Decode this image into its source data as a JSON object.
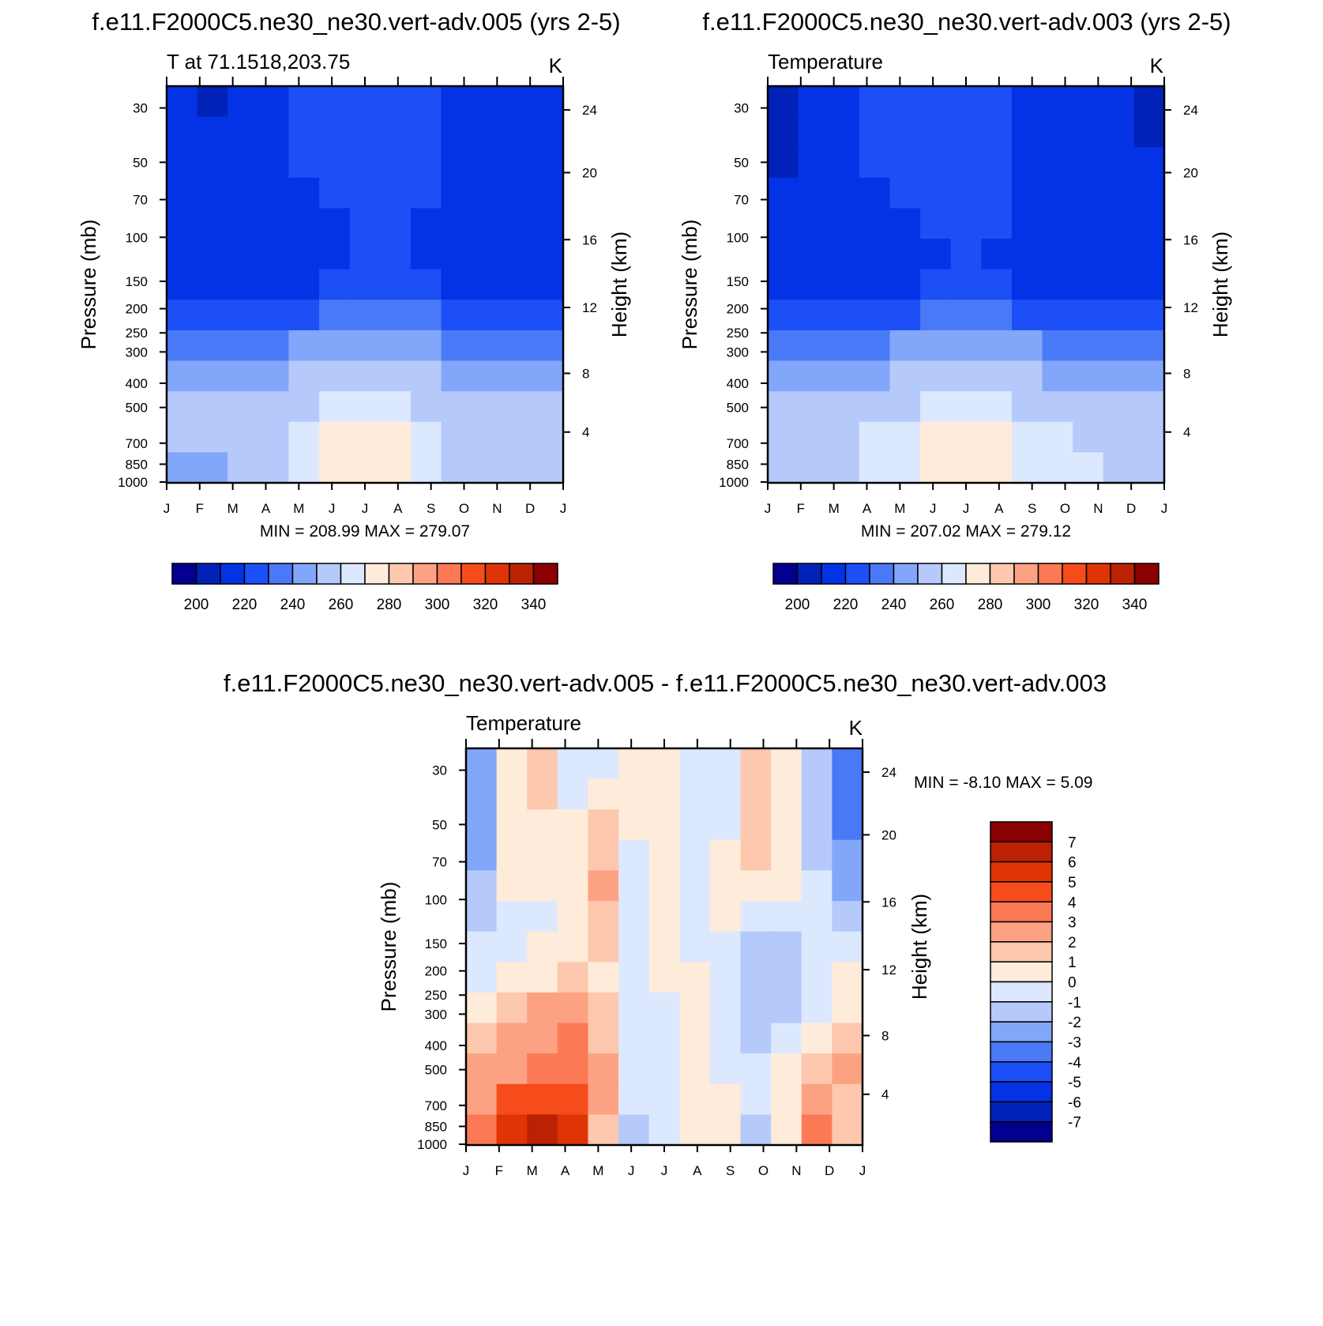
{
  "chart_data": [
    {
      "type": "heatmap",
      "title": "f.e11.F2000C5.ne30_ne30.vert-adv.005 (yrs 2-5)",
      "left_label": "T at 71.1518,203.75",
      "units": "K",
      "ylabel": "Pressure (mb)",
      "ylabel_right": "Height (km)",
      "pressure_ticks": [
        "30",
        "50",
        "70",
        "100",
        "150",
        "200",
        "250",
        "300",
        "400",
        "500",
        "700",
        "850",
        "1000"
      ],
      "height_ticks": [
        "24",
        "20",
        "16",
        "12",
        "8",
        "4"
      ],
      "months": [
        "J",
        "F",
        "M",
        "A",
        "M",
        "J",
        "J",
        "A",
        "S",
        "O",
        "N",
        "D",
        "J"
      ],
      "min_max": "MIN = 208.99 MAX = 279.07",
      "colorbar_labels": [
        "200",
        "220",
        "240",
        "260",
        "280",
        "300",
        "320",
        "340"
      ],
      "colorbar_colors": [
        "#04008f",
        "#0022b8",
        "#0433e6",
        "#1c4ff5",
        "#4a79f7",
        "#82a6f9",
        "#b5cafb",
        "#dce8fd",
        "#feebd9",
        "#fdc8ad",
        "#fca282",
        "#fb7955",
        "#f64c1c",
        "#e03406",
        "#bb2103",
        "#8b0000"
      ],
      "field_levels": [
        [
          2,
          1,
          2,
          2,
          3,
          3,
          3,
          3,
          3,
          2,
          2,
          2,
          2
        ],
        [
          2,
          2,
          2,
          2,
          3,
          3,
          3,
          3,
          3,
          2,
          2,
          2,
          2
        ],
        [
          2,
          2,
          2,
          2,
          3,
          3,
          3,
          3,
          3,
          2,
          2,
          2,
          2
        ],
        [
          2,
          2,
          2,
          2,
          2,
          3,
          3,
          3,
          3,
          2,
          2,
          2,
          2
        ],
        [
          2,
          2,
          2,
          2,
          2,
          2,
          3,
          3,
          2,
          2,
          2,
          2,
          2
        ],
        [
          2,
          2,
          2,
          2,
          2,
          2,
          3,
          3,
          2,
          2,
          2,
          2,
          2
        ],
        [
          2,
          2,
          2,
          2,
          2,
          3,
          3,
          3,
          3,
          2,
          2,
          2,
          2
        ],
        [
          3,
          3,
          3,
          3,
          3,
          4,
          4,
          4,
          4,
          3,
          3,
          3,
          3
        ],
        [
          4,
          4,
          4,
          4,
          5,
          5,
          5,
          5,
          5,
          4,
          4,
          4,
          4
        ],
        [
          5,
          5,
          5,
          5,
          6,
          6,
          6,
          6,
          6,
          5,
          5,
          5,
          5
        ],
        [
          6,
          6,
          6,
          6,
          6,
          7,
          7,
          7,
          6,
          6,
          6,
          6,
          6
        ],
        [
          6,
          6,
          6,
          6,
          7,
          8,
          8,
          8,
          7,
          6,
          6,
          6,
          6
        ],
        [
          5,
          5,
          6,
          6,
          7,
          8,
          8,
          8,
          7,
          6,
          6,
          6,
          6
        ]
      ]
    },
    {
      "type": "heatmap",
      "title": "f.e11.F2000C5.ne30_ne30.vert-adv.003 (yrs 2-5)",
      "left_label": "Temperature",
      "units": "K",
      "ylabel": "Pressure (mb)",
      "ylabel_right": "Height (km)",
      "pressure_ticks": [
        "30",
        "50",
        "70",
        "100",
        "150",
        "200",
        "250",
        "300",
        "400",
        "500",
        "700",
        "850",
        "1000"
      ],
      "height_ticks": [
        "24",
        "20",
        "16",
        "12",
        "8",
        "4"
      ],
      "months": [
        "J",
        "F",
        "M",
        "A",
        "M",
        "J",
        "J",
        "A",
        "S",
        "O",
        "N",
        "D",
        "J"
      ],
      "min_max": "MIN = 207.02 MAX = 279.12",
      "colorbar_labels": [
        "200",
        "220",
        "240",
        "260",
        "280",
        "300",
        "320",
        "340"
      ],
      "colorbar_colors": [
        "#04008f",
        "#0022b8",
        "#0433e6",
        "#1c4ff5",
        "#4a79f7",
        "#82a6f9",
        "#b5cafb",
        "#dce8fd",
        "#feebd9",
        "#fdc8ad",
        "#fca282",
        "#fb7955",
        "#f64c1c",
        "#e03406",
        "#bb2103",
        "#8b0000"
      ],
      "field_levels": [
        [
          1,
          2,
          2,
          3,
          3,
          3,
          3,
          3,
          2,
          2,
          2,
          2,
          1
        ],
        [
          1,
          2,
          2,
          3,
          3,
          3,
          3,
          3,
          2,
          2,
          2,
          2,
          1
        ],
        [
          1,
          2,
          2,
          3,
          3,
          3,
          3,
          3,
          2,
          2,
          2,
          2,
          2
        ],
        [
          2,
          2,
          2,
          2,
          3,
          3,
          3,
          3,
          2,
          2,
          2,
          2,
          2
        ],
        [
          2,
          2,
          2,
          2,
          2,
          3,
          3,
          3,
          2,
          2,
          2,
          2,
          2
        ],
        [
          2,
          2,
          2,
          2,
          2,
          2,
          3,
          2,
          2,
          2,
          2,
          2,
          2
        ],
        [
          2,
          2,
          2,
          2,
          2,
          3,
          3,
          3,
          2,
          2,
          2,
          2,
          2
        ],
        [
          3,
          3,
          3,
          3,
          3,
          4,
          4,
          4,
          3,
          3,
          3,
          3,
          3
        ],
        [
          4,
          4,
          4,
          4,
          5,
          5,
          5,
          5,
          5,
          4,
          4,
          4,
          4
        ],
        [
          5,
          5,
          5,
          5,
          6,
          6,
          6,
          6,
          6,
          5,
          5,
          5,
          5
        ],
        [
          6,
          6,
          6,
          6,
          6,
          7,
          7,
          7,
          6,
          6,
          6,
          6,
          6
        ],
        [
          6,
          6,
          6,
          7,
          7,
          8,
          8,
          8,
          7,
          7,
          6,
          6,
          6
        ],
        [
          6,
          6,
          6,
          7,
          7,
          8,
          8,
          8,
          7,
          7,
          7,
          6,
          6
        ]
      ]
    },
    {
      "type": "heatmap",
      "title": "f.e11.F2000C5.ne30_ne30.vert-adv.005 - f.e11.F2000C5.ne30_ne30.vert-adv.003",
      "left_label": "Temperature",
      "units": "K",
      "ylabel": "Pressure (mb)",
      "ylabel_right": "Height (km)",
      "pressure_ticks": [
        "30",
        "50",
        "70",
        "100",
        "150",
        "200",
        "250",
        "300",
        "400",
        "500",
        "700",
        "850",
        "1000"
      ],
      "height_ticks": [
        "24",
        "20",
        "16",
        "12",
        "8",
        "4"
      ],
      "months": [
        "J",
        "F",
        "M",
        "A",
        "M",
        "J",
        "J",
        "A",
        "S",
        "O",
        "N",
        "D",
        "J"
      ],
      "min_max": "MIN =  -8.10 MAX =   5.09",
      "colorbar_labels": [
        "7",
        "6",
        "5",
        "4",
        "3",
        "2",
        "1",
        "0",
        "-1",
        "-2",
        "-3",
        "-4",
        "-5",
        "-6",
        "-7"
      ],
      "colorbar_colors": [
        "#8b0000",
        "#bb2103",
        "#e03406",
        "#f64c1c",
        "#fb7955",
        "#fca282",
        "#fdc8ad",
        "#feebd9",
        "#dce8fd",
        "#b5cafb",
        "#82a6f9",
        "#4a79f7",
        "#1c4ff5",
        "#0433e6",
        "#0022b8",
        "#04008f"
      ],
      "field_levels": [
        [
          10,
          7,
          6,
          8,
          8,
          7,
          7,
          8,
          8,
          6,
          7,
          9,
          11
        ],
        [
          10,
          7,
          6,
          8,
          7,
          7,
          7,
          8,
          8,
          6,
          7,
          9,
          11
        ],
        [
          10,
          7,
          7,
          7,
          6,
          7,
          7,
          8,
          8,
          6,
          7,
          9,
          11
        ],
        [
          10,
          7,
          7,
          7,
          6,
          8,
          7,
          8,
          7,
          6,
          7,
          9,
          10
        ],
        [
          9,
          7,
          7,
          7,
          5,
          8,
          7,
          8,
          7,
          7,
          7,
          8,
          10
        ],
        [
          9,
          8,
          8,
          7,
          6,
          8,
          7,
          8,
          7,
          8,
          8,
          8,
          9
        ],
        [
          8,
          8,
          7,
          7,
          6,
          8,
          7,
          8,
          8,
          9,
          9,
          8,
          8
        ],
        [
          8,
          7,
          7,
          6,
          7,
          8,
          7,
          7,
          8,
          9,
          9,
          8,
          7
        ],
        [
          7,
          6,
          5,
          5,
          6,
          8,
          8,
          7,
          8,
          9,
          9,
          8,
          7
        ],
        [
          6,
          5,
          5,
          4,
          6,
          8,
          8,
          7,
          8,
          9,
          8,
          7,
          6
        ],
        [
          5,
          5,
          4,
          4,
          5,
          8,
          8,
          7,
          8,
          8,
          7,
          6,
          5
        ],
        [
          5,
          3,
          3,
          3,
          5,
          8,
          8,
          7,
          7,
          8,
          7,
          5,
          6
        ],
        [
          4,
          2,
          1,
          2,
          6,
          9,
          8,
          7,
          7,
          9,
          7,
          4,
          6
        ]
      ]
    }
  ]
}
